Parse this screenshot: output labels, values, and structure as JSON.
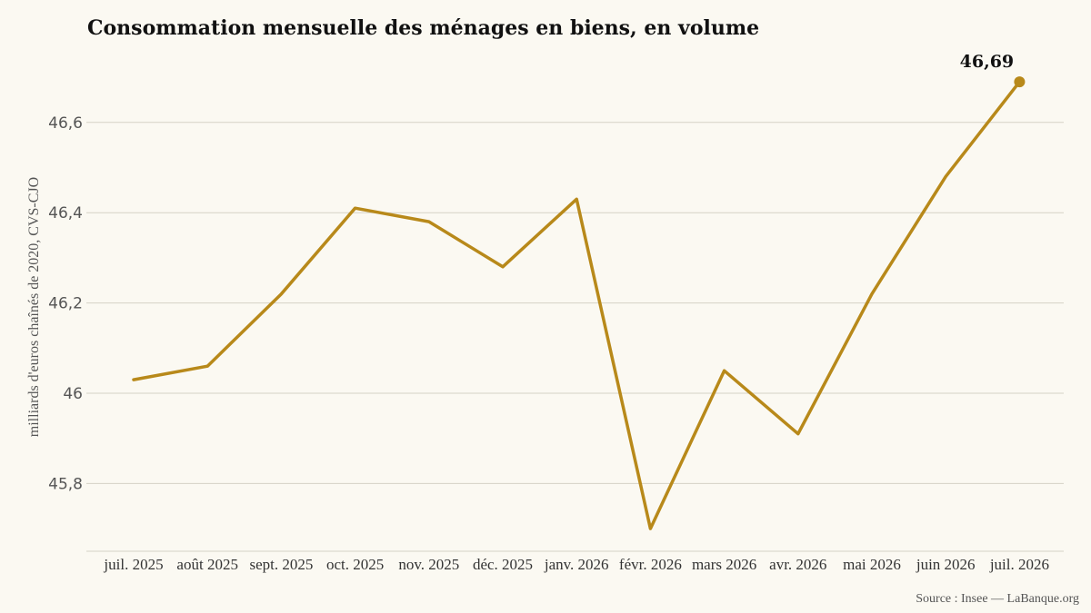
{
  "chart_data": {
    "type": "line",
    "title": "Consommation mensuelle des ménages en biens, en volume",
    "ylabel": "milliards d'euros chaînés de 2020, CVS-CJO",
    "xlabel": "",
    "source": "Source : Insee — LaBanque.org",
    "categories": [
      "juil. 2025",
      "août 2025",
      "sept. 2025",
      "oct. 2025",
      "nov. 2025",
      "déc. 2025",
      "janv. 2026",
      "févr. 2026",
      "mars 2026",
      "avr. 2026",
      "mai 2026",
      "juin 2026",
      "juil. 2026"
    ],
    "values": [
      46.03,
      46.06,
      46.22,
      46.41,
      46.38,
      46.28,
      46.43,
      45.7,
      46.05,
      45.91,
      46.22,
      46.48,
      46.69
    ],
    "last_value_label": "46,69",
    "yticks": [
      45.8,
      46.0,
      46.2,
      46.4,
      46.6
    ],
    "ytick_labels": [
      "45,8",
      "46",
      "46,2",
      "46,4",
      "46,6"
    ],
    "ylim": [
      45.65,
      46.75
    ],
    "grid": true,
    "legend": "none",
    "line_color": "#b8891a",
    "grid_color": "#d5d2c6",
    "background": "#fbf9f2"
  }
}
